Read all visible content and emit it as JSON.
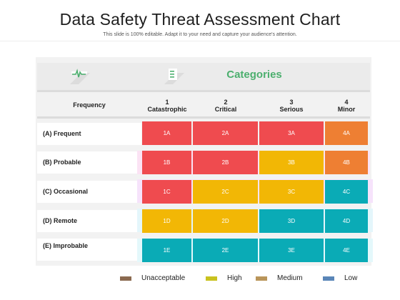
{
  "header": {
    "title": "Data Safety Threat Assessment Chart",
    "subtitle": "This slide is 100% editable. Adapt it to your need and capture your audience's attention."
  },
  "matrix": {
    "categories_title": "Categories",
    "frequency_label": "Frequency",
    "icons": [
      "pulse-icon",
      "list-icon"
    ],
    "columns": [
      {
        "num": "1",
        "name": "Catastrophic"
      },
      {
        "num": "2",
        "name": "Critical"
      },
      {
        "num": "3",
        "name": "Serious"
      },
      {
        "num": "4",
        "name": "Minor"
      }
    ],
    "rows": [
      {
        "label": "(A)  Frequent",
        "cells": [
          "1A",
          "2A",
          "3A",
          "4A"
        ]
      },
      {
        "label": "(B) Probable",
        "cells": [
          "1B",
          "2B",
          "3B",
          "4B"
        ]
      },
      {
        "label": "(C) Occasional",
        "cells": [
          "1C",
          "2C",
          "3C",
          "4C"
        ]
      },
      {
        "label": "(D) Remote",
        "cells": [
          "1D",
          "2D",
          "3D",
          "4D"
        ]
      },
      {
        "label": "(E) Improbable",
        "cells": [
          "1E",
          "2E",
          "3E",
          "4E"
        ]
      }
    ]
  },
  "legend": [
    {
      "label": "Unacceptable",
      "color": "#8b6a50"
    },
    {
      "label": "High",
      "color": "#c9c21f"
    },
    {
      "label": "Medium",
      "color": "#b9955a"
    },
    {
      "label": "Low",
      "color": "#5a86b8"
    }
  ],
  "colors": {
    "red": "#ef4b4f",
    "orange": "#ee7f33",
    "yellow": "#f2b705",
    "teal": "#0aabb6",
    "accent_green": "#4caf6e"
  }
}
